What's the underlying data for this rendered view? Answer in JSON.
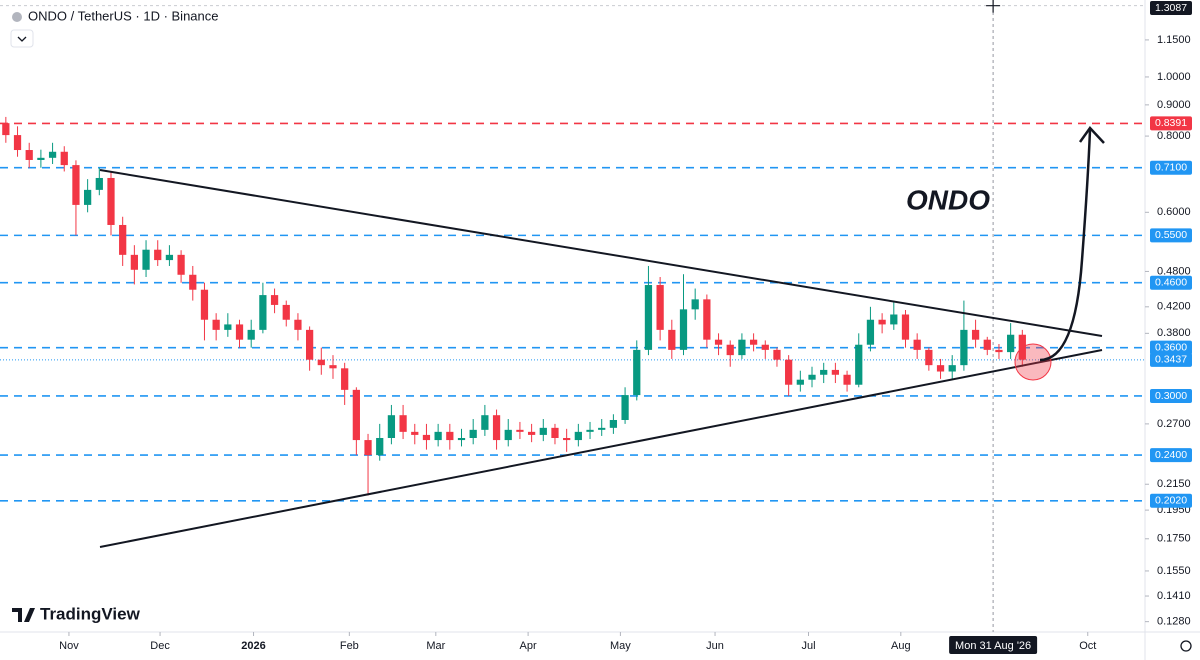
{
  "chart_data": {
    "type": "candlestick",
    "title": "ONDO / TetherUS · 1D · Binance",
    "brand": "TradingView",
    "annotation": "ONDO",
    "log_scale": true,
    "up_color": "#089981",
    "down_color": "#f23645",
    "ylim": [
      0.1231,
      1.337
    ],
    "xlim": [
      -0.5,
      97.5
    ],
    "yticks": [
      {
        "value": 1.15,
        "label": "1.1500"
      },
      {
        "value": 1.0,
        "label": "1.0000"
      },
      {
        "value": 0.9,
        "label": "0.9000"
      },
      {
        "value": 0.8,
        "label": "0.8000"
      },
      {
        "value": 0.6,
        "label": "0.6000"
      },
      {
        "value": 0.48,
        "label": "0.4800"
      },
      {
        "value": 0.42,
        "label": "0.4200"
      },
      {
        "value": 0.38,
        "label": "0.3800"
      },
      {
        "value": 0.27,
        "label": "0.2700"
      },
      {
        "value": 0.215,
        "label": "0.2150"
      },
      {
        "value": 0.195,
        "label": "0.1950"
      },
      {
        "value": 0.175,
        "label": "0.1750"
      },
      {
        "value": 0.155,
        "label": "0.1550"
      },
      {
        "value": 0.141,
        "label": "0.1410"
      },
      {
        "value": 0.128,
        "label": "0.1280"
      }
    ],
    "xticks": [
      {
        "value": 5.4,
        "label": "Nov"
      },
      {
        "value": 13.2,
        "label": "Dec"
      },
      {
        "value": 21.2,
        "label": "2026"
      },
      {
        "value": 29.4,
        "label": "Feb"
      },
      {
        "value": 36.8,
        "label": "Mar"
      },
      {
        "value": 44.7,
        "label": "Apr"
      },
      {
        "value": 52.6,
        "label": "May"
      },
      {
        "value": 60.7,
        "label": "Jun"
      },
      {
        "value": 68.7,
        "label": "Jul"
      },
      {
        "value": 76.6,
        "label": "Aug"
      },
      {
        "value": 92.6,
        "label": "Oct"
      }
    ],
    "levels": [
      {
        "value": 0.8391,
        "label": "0.8391",
        "color": "#f23645",
        "style": "dashed"
      },
      {
        "value": 0.71,
        "label": "0.7100",
        "color": "#2196f3",
        "style": "dashed"
      },
      {
        "value": 0.55,
        "label": "0.5500",
        "color": "#2196f3",
        "style": "dashed"
      },
      {
        "value": 0.46,
        "label": "0.4600",
        "color": "#2196f3",
        "style": "dashed"
      },
      {
        "value": 0.36,
        "label": "0.3600",
        "color": "#2196f3",
        "style": "dashed"
      },
      {
        "value": 0.3437,
        "label": "0.3437",
        "color": "#2196f3",
        "style": "dotted"
      },
      {
        "value": 0.3,
        "label": "0.3000",
        "color": "#2196f3",
        "style": "dashed"
      },
      {
        "value": 0.24,
        "label": "0.2400",
        "color": "#2196f3",
        "style": "dashed"
      },
      {
        "value": 0.202,
        "label": "0.2020",
        "color": "#2196f3",
        "style": "dashed"
      }
    ],
    "crosshair": {
      "x": 84.5,
      "x_label": "Mon 31 Aug '26",
      "y": 1.3087,
      "y_label": "1.3087"
    },
    "open": [
      0.84,
      0.803,
      0.759,
      0.731,
      0.737,
      0.754,
      0.717,
      0.617,
      0.653,
      0.683,
      0.572,
      0.511,
      0.483,
      0.521,
      0.501,
      0.511,
      0.474,
      0.448,
      0.4,
      0.385,
      0.393,
      0.371,
      0.385,
      0.439,
      0.423,
      0.4,
      0.385,
      0.344,
      0.337,
      0.333,
      0.307,
      0.254,
      0.24,
      0.256,
      0.279,
      0.262,
      0.259,
      0.254,
      0.262,
      0.254,
      0.256,
      0.264,
      0.279,
      0.254,
      0.264,
      0.262,
      0.259,
      0.266,
      0.256,
      0.254,
      0.262,
      0.264,
      0.266,
      0.274,
      0.301,
      0.357,
      0.456,
      0.385,
      0.357,
      0.416,
      0.432,
      0.371,
      0.364,
      0.35,
      0.371,
      0.364,
      0.357,
      0.344,
      0.313,
      0.319,
      0.325,
      0.331,
      0.325,
      0.313,
      0.364,
      0.4,
      0.393,
      0.408,
      0.371,
      0.357,
      0.337,
      0.329,
      0.337,
      0.385,
      0.371,
      0.357,
      0.354,
      0.378
    ],
    "high": [
      0.86,
      0.83,
      0.78,
      0.76,
      0.78,
      0.77,
      0.73,
      0.68,
      0.71,
      0.7,
      0.59,
      0.53,
      0.54,
      0.54,
      0.53,
      0.52,
      0.49,
      0.46,
      0.41,
      0.41,
      0.4,
      0.4,
      0.46,
      0.45,
      0.43,
      0.41,
      0.39,
      0.36,
      0.35,
      0.34,
      0.31,
      0.26,
      0.27,
      0.29,
      0.29,
      0.27,
      0.27,
      0.27,
      0.27,
      0.265,
      0.275,
      0.29,
      0.285,
      0.275,
      0.272,
      0.27,
      0.275,
      0.27,
      0.265,
      0.27,
      0.272,
      0.275,
      0.28,
      0.31,
      0.37,
      0.49,
      0.47,
      0.4,
      0.475,
      0.45,
      0.44,
      0.38,
      0.37,
      0.38,
      0.38,
      0.37,
      0.36,
      0.35,
      0.33,
      0.335,
      0.34,
      0.34,
      0.33,
      0.38,
      0.42,
      0.41,
      0.43,
      0.415,
      0.38,
      0.36,
      0.345,
      0.35,
      0.43,
      0.4,
      0.375,
      0.365,
      0.395,
      0.385
    ],
    "low": [
      0.78,
      0.74,
      0.71,
      0.71,
      0.72,
      0.7,
      0.55,
      0.6,
      0.64,
      0.55,
      0.49,
      0.457,
      0.47,
      0.49,
      0.49,
      0.46,
      0.43,
      0.37,
      0.37,
      0.375,
      0.36,
      0.36,
      0.38,
      0.41,
      0.39,
      0.37,
      0.33,
      0.325,
      0.32,
      0.29,
      0.24,
      0.206,
      0.235,
      0.25,
      0.255,
      0.25,
      0.245,
      0.248,
      0.245,
      0.248,
      0.25,
      0.258,
      0.245,
      0.248,
      0.255,
      0.252,
      0.253,
      0.25,
      0.243,
      0.248,
      0.255,
      0.258,
      0.26,
      0.27,
      0.295,
      0.35,
      0.37,
      0.345,
      0.35,
      0.4,
      0.36,
      0.35,
      0.335,
      0.345,
      0.355,
      0.345,
      0.335,
      0.3,
      0.305,
      0.31,
      0.315,
      0.315,
      0.305,
      0.31,
      0.355,
      0.38,
      0.385,
      0.36,
      0.345,
      0.33,
      0.32,
      0.32,
      0.33,
      0.36,
      0.35,
      0.345,
      0.345,
      0.335
    ],
    "close": [
      0.803,
      0.759,
      0.731,
      0.737,
      0.754,
      0.717,
      0.617,
      0.653,
      0.683,
      0.572,
      0.511,
      0.483,
      0.521,
      0.501,
      0.511,
      0.474,
      0.448,
      0.4,
      0.385,
      0.393,
      0.371,
      0.385,
      0.439,
      0.423,
      0.4,
      0.385,
      0.344,
      0.337,
      0.333,
      0.307,
      0.254,
      0.24,
      0.256,
      0.279,
      0.262,
      0.259,
      0.254,
      0.262,
      0.254,
      0.256,
      0.264,
      0.279,
      0.254,
      0.264,
      0.262,
      0.259,
      0.266,
      0.256,
      0.254,
      0.262,
      0.264,
      0.266,
      0.274,
      0.301,
      0.357,
      0.456,
      0.385,
      0.357,
      0.416,
      0.432,
      0.371,
      0.364,
      0.35,
      0.371,
      0.364,
      0.357,
      0.344,
      0.313,
      0.319,
      0.325,
      0.331,
      0.325,
      0.313,
      0.364,
      0.4,
      0.393,
      0.408,
      0.371,
      0.357,
      0.337,
      0.329,
      0.337,
      0.385,
      0.371,
      0.357,
      0.354,
      0.378,
      0.344
    ]
  }
}
